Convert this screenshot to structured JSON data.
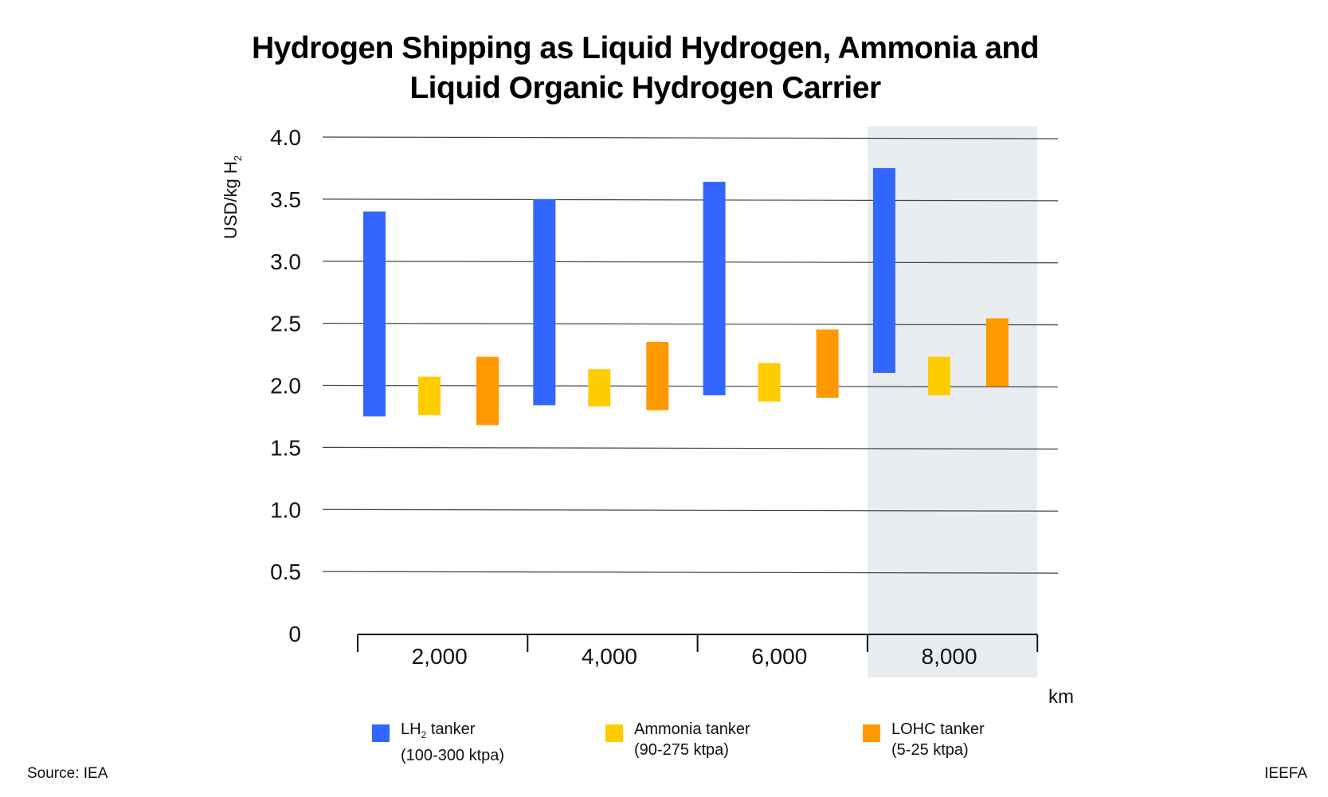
{
  "chart_data": {
    "type": "floating-bar",
    "title": "Hydrogen Shipping as Liquid Hydrogen, Ammonia and Liquid Organic Hydrogen Carrier",
    "ylabel": "USD/kg H2",
    "xlabel": "km",
    "ylim": [
      0,
      4.0
    ],
    "yticks": [
      "0",
      "0.5",
      "1.0",
      "1.5",
      "2.0",
      "2.5",
      "3.0",
      "3.5",
      "4.0"
    ],
    "categories": [
      "2,000",
      "4,000",
      "6,000",
      "8,000"
    ],
    "highlighted_category": "8,000",
    "grid": true,
    "legend_position": "bottom",
    "series": [
      {
        "name": "LH2 tanker (100-300 ktpa)",
        "color": "#3366ff",
        "ranges": [
          [
            1.75,
            3.4
          ],
          [
            1.84,
            3.5
          ],
          [
            1.92,
            3.64
          ],
          [
            2.1,
            3.75
          ]
        ]
      },
      {
        "name": "Ammonia tanker (90-275 ktpa)",
        "color": "#ffcc00",
        "ranges": [
          [
            1.76,
            2.07
          ],
          [
            1.83,
            2.13
          ],
          [
            1.87,
            2.18
          ],
          [
            1.92,
            2.23
          ]
        ]
      },
      {
        "name": "LOHC tanker (5-25 ktpa)",
        "color": "#ff9900",
        "ranges": [
          [
            1.68,
            2.23
          ],
          [
            1.8,
            2.35
          ],
          [
            1.9,
            2.45
          ],
          [
            1.99,
            2.54
          ]
        ]
      }
    ]
  },
  "title_line1": "Hydrogen Shipping as Liquid Hydrogen, Ammonia and",
  "title_line2": "Liquid Organic Hydrogen Carrier",
  "ylabel_main": "USD/kg H",
  "ylabel_sub": "2",
  "legend": [
    {
      "line1": "LH",
      "sub": "2",
      "line1b": " tanker",
      "line2": "(100-300 ktpa)"
    },
    {
      "line1": "Ammonia tanker",
      "line2": "(90-275 ktpa)"
    },
    {
      "line1": "LOHC tanker",
      "line2": "(5-25 ktpa)"
    }
  ],
  "source": "Source: IEA",
  "brand": "IEEFA"
}
